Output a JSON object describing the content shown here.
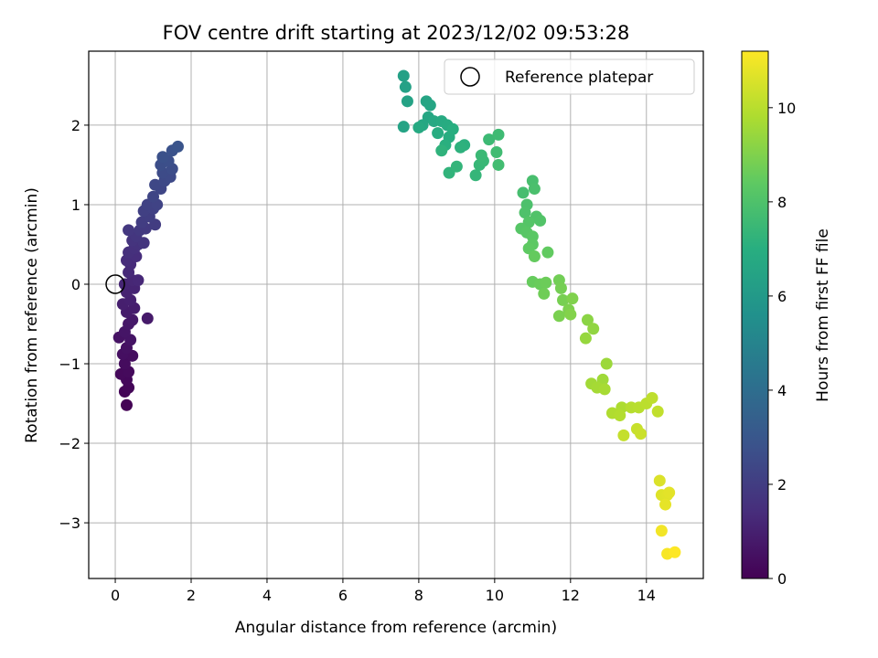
{
  "chart_data": {
    "type": "scatter",
    "title": "FOV centre drift starting at 2023/12/02 09:53:28",
    "xlabel": "Angular distance from reference (arcmin)",
    "ylabel": "Rotation from reference (arcmin)",
    "xlim": [
      -0.7,
      15.5
    ],
    "ylim": [
      -3.7,
      2.93
    ],
    "xticks": [
      0,
      2,
      4,
      6,
      8,
      10,
      12,
      14
    ],
    "yticks": [
      -3,
      -2,
      -1,
      0,
      1,
      2
    ],
    "grid": true,
    "legend": {
      "position": "top-right",
      "entries": [
        {
          "label": "Reference platepar",
          "marker": "open-circle"
        }
      ]
    },
    "reference_point": {
      "x": 0,
      "y": 0
    },
    "colorbar": {
      "label": "Hours from first FF file",
      "min": 0,
      "max": 11.2,
      "ticks": [
        0,
        2,
        4,
        6,
        8,
        10
      ],
      "colormap": "viridis"
    },
    "points": [
      {
        "x": 0.3,
        "y": -1.52,
        "c": 0.05
      },
      {
        "x": 0.25,
        "y": -1.35,
        "c": 0.1
      },
      {
        "x": 0.35,
        "y": -1.3,
        "c": 0.15
      },
      {
        "x": 0.3,
        "y": -1.2,
        "c": 0.2
      },
      {
        "x": 0.15,
        "y": -1.13,
        "c": 0.25
      },
      {
        "x": 0.35,
        "y": -1.1,
        "c": 0.3
      },
      {
        "x": 0.25,
        "y": -1.0,
        "c": 0.35
      },
      {
        "x": 0.45,
        "y": -0.9,
        "c": 0.4
      },
      {
        "x": 0.2,
        "y": -0.88,
        "c": 0.45
      },
      {
        "x": 0.3,
        "y": -0.8,
        "c": 0.5
      },
      {
        "x": 0.1,
        "y": -0.67,
        "c": 0.55
      },
      {
        "x": 0.4,
        "y": -0.7,
        "c": 0.6
      },
      {
        "x": 0.25,
        "y": -0.6,
        "c": 0.65
      },
      {
        "x": 0.35,
        "y": -0.5,
        "c": 0.7
      },
      {
        "x": 0.45,
        "y": -0.45,
        "c": 0.75
      },
      {
        "x": 0.85,
        "y": -0.43,
        "c": 0.8
      },
      {
        "x": 0.3,
        "y": -0.35,
        "c": 0.85
      },
      {
        "x": 0.5,
        "y": -0.3,
        "c": 0.9
      },
      {
        "x": 0.2,
        "y": -0.25,
        "c": 0.95
      },
      {
        "x": 0.4,
        "y": -0.2,
        "c": 1.0
      },
      {
        "x": 0.3,
        "y": -0.1,
        "c": 1.05
      },
      {
        "x": 0.5,
        "y": -0.05,
        "c": 1.1
      },
      {
        "x": 0.25,
        "y": 0.0,
        "c": 1.15
      },
      {
        "x": 0.45,
        "y": 0.05,
        "c": 1.2
      },
      {
        "x": 0.6,
        "y": 0.05,
        "c": 1.25
      },
      {
        "x": 0.35,
        "y": 0.15,
        "c": 1.3
      },
      {
        "x": 0.4,
        "y": 0.25,
        "c": 1.35
      },
      {
        "x": 0.3,
        "y": 0.3,
        "c": 1.4
      },
      {
        "x": 0.55,
        "y": 0.35,
        "c": 1.45
      },
      {
        "x": 0.35,
        "y": 0.4,
        "c": 1.5
      },
      {
        "x": 0.5,
        "y": 0.45,
        "c": 1.55
      },
      {
        "x": 0.6,
        "y": 0.5,
        "c": 1.6
      },
      {
        "x": 0.45,
        "y": 0.55,
        "c": 1.65
      },
      {
        "x": 0.75,
        "y": 0.52,
        "c": 1.7
      },
      {
        "x": 0.55,
        "y": 0.6,
        "c": 1.75
      },
      {
        "x": 0.35,
        "y": 0.68,
        "c": 1.8
      },
      {
        "x": 0.65,
        "y": 0.68,
        "c": 1.85
      },
      {
        "x": 0.8,
        "y": 0.7,
        "c": 1.9
      },
      {
        "x": 1.05,
        "y": 0.75,
        "c": 1.95
      },
      {
        "x": 0.7,
        "y": 0.78,
        "c": 2.0
      },
      {
        "x": 0.9,
        "y": 0.85,
        "c": 2.05
      },
      {
        "x": 0.75,
        "y": 0.92,
        "c": 2.1
      },
      {
        "x": 1.0,
        "y": 0.95,
        "c": 2.15
      },
      {
        "x": 0.85,
        "y": 1.0,
        "c": 2.2
      },
      {
        "x": 1.1,
        "y": 1.0,
        "c": 2.25
      },
      {
        "x": 1.0,
        "y": 1.1,
        "c": 2.3
      },
      {
        "x": 1.2,
        "y": 1.2,
        "c": 2.35
      },
      {
        "x": 1.05,
        "y": 1.25,
        "c": 2.4
      },
      {
        "x": 1.3,
        "y": 1.3,
        "c": 2.45
      },
      {
        "x": 1.45,
        "y": 1.35,
        "c": 2.5
      },
      {
        "x": 1.25,
        "y": 1.4,
        "c": 2.55
      },
      {
        "x": 1.5,
        "y": 1.45,
        "c": 2.6
      },
      {
        "x": 1.2,
        "y": 1.5,
        "c": 2.65
      },
      {
        "x": 1.4,
        "y": 1.55,
        "c": 2.7
      },
      {
        "x": 1.25,
        "y": 1.6,
        "c": 2.75
      },
      {
        "x": 1.5,
        "y": 1.68,
        "c": 2.8
      },
      {
        "x": 1.65,
        "y": 1.73,
        "c": 2.9
      },
      {
        "x": 7.6,
        "y": 2.62,
        "c": 6.3
      },
      {
        "x": 7.65,
        "y": 2.48,
        "c": 6.35
      },
      {
        "x": 7.7,
        "y": 2.3,
        "c": 6.4
      },
      {
        "x": 7.6,
        "y": 1.98,
        "c": 6.45
      },
      {
        "x": 8.2,
        "y": 2.3,
        "c": 6.5
      },
      {
        "x": 8.3,
        "y": 2.25,
        "c": 6.55
      },
      {
        "x": 8.25,
        "y": 2.1,
        "c": 6.6
      },
      {
        "x": 8.1,
        "y": 2.0,
        "c": 6.65
      },
      {
        "x": 8.4,
        "y": 2.05,
        "c": 6.7
      },
      {
        "x": 8.0,
        "y": 1.97,
        "c": 6.75
      },
      {
        "x": 8.6,
        "y": 2.05,
        "c": 6.8
      },
      {
        "x": 8.75,
        "y": 2.0,
        "c": 6.85
      },
      {
        "x": 8.5,
        "y": 1.9,
        "c": 6.9
      },
      {
        "x": 8.8,
        "y": 1.85,
        "c": 6.95
      },
      {
        "x": 8.9,
        "y": 1.95,
        "c": 7.0
      },
      {
        "x": 8.7,
        "y": 1.75,
        "c": 7.05
      },
      {
        "x": 9.2,
        "y": 1.75,
        "c": 7.1
      },
      {
        "x": 9.1,
        "y": 1.72,
        "c": 7.15
      },
      {
        "x": 8.6,
        "y": 1.68,
        "c": 7.2
      },
      {
        "x": 8.8,
        "y": 1.4,
        "c": 7.25
      },
      {
        "x": 9.0,
        "y": 1.48,
        "c": 7.3
      },
      {
        "x": 9.5,
        "y": 1.37,
        "c": 7.35
      },
      {
        "x": 9.6,
        "y": 1.5,
        "c": 7.4
      },
      {
        "x": 9.7,
        "y": 1.55,
        "c": 7.45
      },
      {
        "x": 9.65,
        "y": 1.62,
        "c": 7.5
      },
      {
        "x": 9.85,
        "y": 1.82,
        "c": 7.55
      },
      {
        "x": 10.1,
        "y": 1.88,
        "c": 7.6
      },
      {
        "x": 10.05,
        "y": 1.66,
        "c": 7.65
      },
      {
        "x": 10.1,
        "y": 1.5,
        "c": 7.7
      },
      {
        "x": 10.75,
        "y": 1.15,
        "c": 7.8
      },
      {
        "x": 11.0,
        "y": 1.3,
        "c": 7.85
      },
      {
        "x": 11.05,
        "y": 1.2,
        "c": 7.9
      },
      {
        "x": 10.85,
        "y": 1.0,
        "c": 7.95
      },
      {
        "x": 10.8,
        "y": 0.9,
        "c": 8.0
      },
      {
        "x": 11.1,
        "y": 0.85,
        "c": 8.05
      },
      {
        "x": 11.2,
        "y": 0.8,
        "c": 8.1
      },
      {
        "x": 10.9,
        "y": 0.78,
        "c": 8.15
      },
      {
        "x": 10.7,
        "y": 0.7,
        "c": 8.2
      },
      {
        "x": 10.85,
        "y": 0.65,
        "c": 8.25
      },
      {
        "x": 11.0,
        "y": 0.6,
        "c": 8.3
      },
      {
        "x": 11.0,
        "y": 0.5,
        "c": 8.35
      },
      {
        "x": 10.9,
        "y": 0.45,
        "c": 8.4
      },
      {
        "x": 11.4,
        "y": 0.4,
        "c": 8.45
      },
      {
        "x": 11.05,
        "y": 0.35,
        "c": 8.5
      },
      {
        "x": 11.0,
        "y": 0.03,
        "c": 8.55
      },
      {
        "x": 11.2,
        "y": 0.0,
        "c": 8.6
      },
      {
        "x": 11.35,
        "y": 0.02,
        "c": 8.65
      },
      {
        "x": 11.3,
        "y": -0.12,
        "c": 8.7
      },
      {
        "x": 11.7,
        "y": 0.05,
        "c": 8.75
      },
      {
        "x": 11.75,
        "y": -0.05,
        "c": 8.8
      },
      {
        "x": 11.8,
        "y": -0.2,
        "c": 8.85
      },
      {
        "x": 11.7,
        "y": -0.4,
        "c": 8.9
      },
      {
        "x": 11.95,
        "y": -0.32,
        "c": 8.95
      },
      {
        "x": 12.05,
        "y": -0.18,
        "c": 9.0
      },
      {
        "x": 12.0,
        "y": -0.38,
        "c": 9.05
      },
      {
        "x": 12.45,
        "y": -0.45,
        "c": 9.2
      },
      {
        "x": 12.6,
        "y": -0.56,
        "c": 9.3
      },
      {
        "x": 12.4,
        "y": -0.68,
        "c": 9.4
      },
      {
        "x": 12.95,
        "y": -1.0,
        "c": 9.5
      },
      {
        "x": 12.85,
        "y": -1.2,
        "c": 9.55
      },
      {
        "x": 12.55,
        "y": -1.25,
        "c": 9.6
      },
      {
        "x": 12.7,
        "y": -1.3,
        "c": 9.65
      },
      {
        "x": 12.9,
        "y": -1.32,
        "c": 9.7
      },
      {
        "x": 13.35,
        "y": -1.55,
        "c": 9.8
      },
      {
        "x": 13.1,
        "y": -1.62,
        "c": 9.85
      },
      {
        "x": 13.3,
        "y": -1.65,
        "c": 9.9
      },
      {
        "x": 13.6,
        "y": -1.55,
        "c": 9.95
      },
      {
        "x": 13.8,
        "y": -1.55,
        "c": 10.0
      },
      {
        "x": 14.0,
        "y": -1.5,
        "c": 10.05
      },
      {
        "x": 14.15,
        "y": -1.43,
        "c": 10.1
      },
      {
        "x": 14.3,
        "y": -1.6,
        "c": 10.15
      },
      {
        "x": 13.4,
        "y": -1.9,
        "c": 10.2
      },
      {
        "x": 13.75,
        "y": -1.82,
        "c": 10.25
      },
      {
        "x": 13.85,
        "y": -1.88,
        "c": 10.3
      },
      {
        "x": 14.35,
        "y": -2.47,
        "c": 10.6
      },
      {
        "x": 14.4,
        "y": -2.65,
        "c": 10.65
      },
      {
        "x": 14.55,
        "y": -2.65,
        "c": 10.7
      },
      {
        "x": 14.6,
        "y": -2.62,
        "c": 10.75
      },
      {
        "x": 14.5,
        "y": -2.77,
        "c": 10.8
      },
      {
        "x": 14.4,
        "y": -3.1,
        "c": 11.0
      },
      {
        "x": 14.55,
        "y": -3.39,
        "c": 11.1
      },
      {
        "x": 14.75,
        "y": -3.37,
        "c": 11.2
      }
    ]
  }
}
